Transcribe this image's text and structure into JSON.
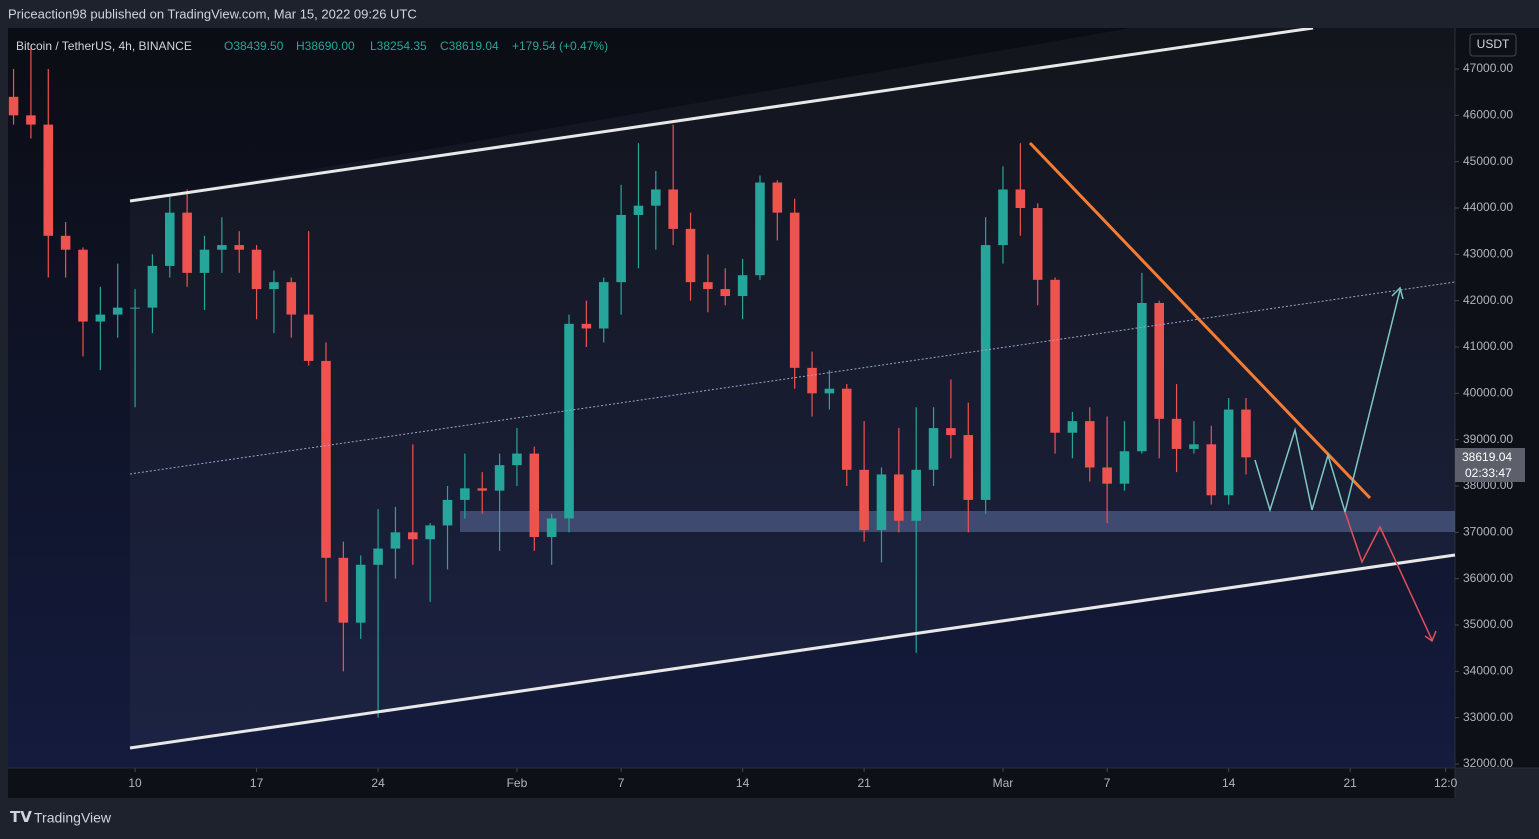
{
  "header": {
    "text": "Priceaction98 published on TradingView.com, Mar 15, 2022 09:26 UTC"
  },
  "legend": {
    "symbol": "Bitcoin / TetherUS, 4h, BINANCE",
    "open": "O38439.50",
    "high": "H38690.00",
    "low": "L38254.35",
    "close": "C38619.04",
    "change": "+179.54 (+0.47%)"
  },
  "currency": "USDT",
  "price_label": {
    "price": "38619.04",
    "countdown": "02:33:47"
  },
  "footer": {
    "brand": "TradingView"
  },
  "chart_data": {
    "type": "candlestick",
    "x": [
      3,
      4,
      5,
      6,
      7,
      8,
      9,
      10,
      11,
      12,
      13,
      14,
      15,
      16,
      17,
      18,
      19,
      20,
      21,
      22,
      23,
      24,
      25,
      26,
      27,
      28,
      29,
      30,
      31,
      32,
      33,
      34,
      35,
      36,
      37,
      38,
      39,
      40,
      41,
      42,
      43,
      44,
      45,
      46,
      47,
      48,
      49,
      50,
      51,
      52,
      53,
      54,
      55,
      56,
      57,
      58,
      59,
      60,
      61,
      62,
      63,
      64,
      65,
      66,
      67,
      68,
      69,
      70,
      71,
      72,
      73,
      74
    ],
    "open": [
      46400,
      46000,
      45800,
      43400,
      43100,
      41550,
      41700,
      41850,
      41850,
      42750,
      43900,
      42600,
      43100,
      43200,
      43100,
      42250,
      42400,
      41700,
      40700,
      36450,
      35050,
      36300,
      36650,
      37000,
      36850,
      37150,
      37700,
      37950,
      37900,
      38450,
      38700,
      36900,
      37300,
      41500,
      41400,
      42400,
      43850,
      44050,
      44400,
      43550,
      42400,
      42250,
      42100,
      42550,
      44550,
      43900,
      40550,
      40000,
      40100,
      38350,
      37050,
      38250,
      37250,
      38350,
      39250,
      39100,
      37700,
      43200,
      44400,
      44000,
      42450,
      39150,
      39400,
      38400,
      38050,
      38750,
      41950,
      39450,
      38800,
      38900,
      37800,
      39650
    ],
    "high": [
      47000,
      47500,
      47000,
      43700,
      43150,
      42300,
      42800,
      42250,
      43000,
      44300,
      44400,
      43400,
      43800,
      43500,
      43200,
      42650,
      42500,
      43500,
      41100,
      36800,
      36500,
      37500,
      37550,
      38900,
      37200,
      38000,
      38700,
      38300,
      38700,
      39250,
      38850,
      37400,
      41700,
      42000,
      42500,
      44500,
      45400,
      44800,
      45800,
      43900,
      43000,
      42700,
      42900,
      44700,
      44600,
      44200,
      40900,
      40500,
      40200,
      39400,
      38400,
      39250,
      39700,
      39700,
      40300,
      39800,
      43800,
      44900,
      45400,
      44100,
      42500,
      39600,
      39700,
      39500,
      39400,
      42600,
      42000,
      40200,
      39400,
      39300,
      39900,
      39900
    ],
    "low": [
      45800,
      45500,
      42500,
      42500,
      40800,
      40500,
      41200,
      39700,
      41300,
      42500,
      42300,
      41800,
      42600,
      42600,
      41600,
      41300,
      41200,
      40600,
      35500,
      34000,
      34700,
      33000,
      36000,
      36300,
      35500,
      36200,
      37300,
      37400,
      36600,
      38000,
      36600,
      36300,
      37000,
      41000,
      41100,
      41700,
      42700,
      43100,
      43200,
      42000,
      41750,
      41900,
      41600,
      42450,
      43300,
      40100,
      39500,
      39650,
      38000,
      36800,
      36350,
      37000,
      34400,
      38000,
      38600,
      37000,
      37400,
      42800,
      43400,
      41900,
      38700,
      38600,
      38100,
      37200,
      37900,
      38700,
      38600,
      38300,
      38700,
      37600,
      37600,
      38250
    ],
    "close": [
      46000,
      45800,
      43400,
      43100,
      41550,
      41700,
      41850,
      41850,
      42750,
      43900,
      42600,
      43100,
      43200,
      43100,
      42250,
      42400,
      41700,
      40700,
      36450,
      35050,
      36300,
      36650,
      37000,
      36850,
      37150,
      37700,
      37950,
      37900,
      38450,
      38700,
      36900,
      37300,
      41500,
      41400,
      42400,
      43850,
      44050,
      44400,
      43550,
      42400,
      42250,
      42100,
      42550,
      44550,
      43900,
      40550,
      40000,
      40100,
      38350,
      37050,
      38250,
      37250,
      38350,
      39250,
      39100,
      37700,
      43200,
      44400,
      44000,
      42450,
      39150,
      39400,
      38400,
      38050,
      38750,
      41950,
      39450,
      38800,
      38900,
      37800,
      39650,
      38619.04
    ],
    "up_color": "#26a69a",
    "down_color": "#ef5350",
    "xlim": [
      2.68,
      86.04
    ],
    "xticks": [
      {
        "value": 10,
        "label": "10"
      },
      {
        "value": 17,
        "label": "17"
      },
      {
        "value": 24,
        "label": "24"
      },
      {
        "value": 32,
        "label": "Feb"
      },
      {
        "value": 38,
        "label": "7"
      },
      {
        "value": 45,
        "label": "14"
      },
      {
        "value": 52,
        "label": "21"
      },
      {
        "value": 60,
        "label": "Mar"
      },
      {
        "value": 66,
        "label": "7"
      },
      {
        "value": 73,
        "label": "14"
      },
      {
        "value": 80,
        "label": "21"
      },
      {
        "value": 85.5,
        "label": "12:0"
      }
    ],
    "ylim": [
      31914,
      47885
    ],
    "yticks": [
      {
        "value": 32000,
        "label": "32000.00"
      },
      {
        "value": 33000,
        "label": "33000.00"
      },
      {
        "value": 34000,
        "label": "34000.00"
      },
      {
        "value": 35000,
        "label": "35000.00"
      },
      {
        "value": 36000,
        "label": "36000.00"
      },
      {
        "value": 37000,
        "label": "37000.00"
      },
      {
        "value": 38000,
        "label": "38000.00"
      },
      {
        "value": 39000,
        "label": "39000.00"
      },
      {
        "value": 40000,
        "label": "40000.00"
      },
      {
        "value": 41000,
        "label": "41000.00"
      },
      {
        "value": 42000,
        "label": "42000.00"
      },
      {
        "value": 43000,
        "label": "43000.00"
      },
      {
        "value": 44000,
        "label": "44000.00"
      },
      {
        "value": 45000,
        "label": "45000.00"
      },
      {
        "value": 46000,
        "label": "46000.00"
      },
      {
        "value": 47000,
        "label": "47000.00"
      }
    ]
  }
}
